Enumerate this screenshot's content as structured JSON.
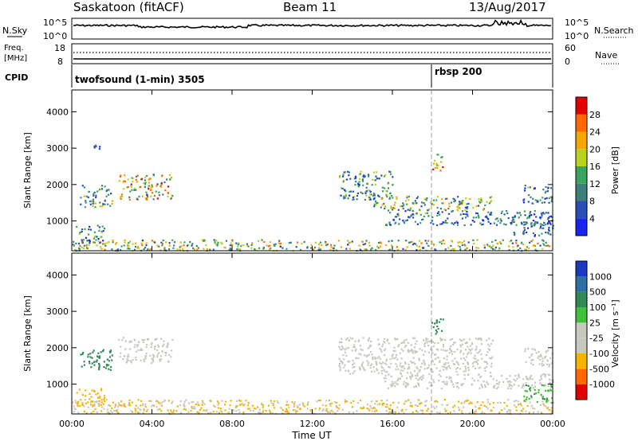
{
  "header": {
    "station": "Saskatoon (fitACF)",
    "beam": "Beam 11",
    "date": "13/Aug/2017"
  },
  "strips": {
    "nsky_label": "N.Sky",
    "nsky_ticks": [
      "10^5",
      "10^0"
    ],
    "nsearch_label": "N.Search",
    "nsearch_ticks": [
      "10^5",
      "10^0"
    ],
    "freq_label_1": "Freq.",
    "freq_label_2": "[MHz]",
    "freq_ticks": [
      "18",
      "8"
    ],
    "nave_label": "Nave",
    "nave_ticks": [
      "60",
      "0"
    ],
    "cpid_label": "CPID",
    "cpid_modes": [
      {
        "name": "twofsound (1-min) 3505",
        "start": 0
      },
      {
        "name": "rbsp 200",
        "start": 18.0
      }
    ]
  },
  "power_scale": {
    "title": "Power [dB]",
    "ticks": [
      "4",
      "8",
      "12",
      "16",
      "20",
      "24",
      "28"
    ],
    "colors": [
      "#1a23f0",
      "#274fb5",
      "#3d7f7a",
      "#3aa35c",
      "#b8d21f",
      "#f5a700",
      "#ff6a00",
      "#e30000"
    ]
  },
  "velocity_scale": {
    "title": "Velocity [m s⁻¹]",
    "ticks": [
      "-1000",
      "-500",
      "-100",
      "-25",
      "25",
      "100",
      "500",
      "1000"
    ],
    "colors": [
      "#e30000",
      "#ff6a00",
      "#f5b400",
      "#c8c8c0",
      "#c8c8c0",
      "#3fc23a",
      "#2f8a55",
      "#2c6fa3",
      "#1c37c2"
    ]
  },
  "axes": {
    "ylabel": "Slant Range [km]",
    "xlabel": "Time UT",
    "yticks": [
      "1000",
      "2000",
      "3000",
      "4000"
    ],
    "xticks": [
      "00:00",
      "04:00",
      "08:00",
      "12:00",
      "16:00",
      "20:00",
      "00:00"
    ]
  },
  "chart_data": [
    {
      "type": "heatmap",
      "panel": "power",
      "xunit": "hours UT",
      "yunit": "km",
      "xlim": [
        0,
        24
      ],
      "ylim": [
        180,
        4600
      ],
      "echo_regions": [
        {
          "t0": 0.0,
          "t1": 24.0,
          "r0": 200,
          "r1": 500,
          "value": 16
        },
        {
          "t0": 0.2,
          "t1": 1.6,
          "r0": 400,
          "r1": 900,
          "value": 10
        },
        {
          "t0": 0.4,
          "t1": 2.0,
          "r0": 1400,
          "r1": 2000,
          "value": 14
        },
        {
          "t0": 1.0,
          "t1": 1.5,
          "r0": 2950,
          "r1": 3100,
          "value": 6
        },
        {
          "t0": 2.3,
          "t1": 5.0,
          "r0": 1600,
          "r1": 2300,
          "value": 18
        },
        {
          "t0": 13.3,
          "t1": 16.0,
          "r0": 1600,
          "r1": 2400,
          "value": 10
        },
        {
          "t0": 15.0,
          "t1": 21.0,
          "r0": 1300,
          "r1": 1700,
          "value": 14
        },
        {
          "t0": 15.5,
          "t1": 24.0,
          "r0": 900,
          "r1": 1300,
          "value": 9
        },
        {
          "t0": 17.9,
          "t1": 18.5,
          "r0": 2400,
          "r1": 2850,
          "value": 22
        },
        {
          "t0": 22.0,
          "t1": 24.0,
          "r0": 600,
          "r1": 1000,
          "value": 8
        },
        {
          "t0": 22.5,
          "t1": 24.0,
          "r0": 1500,
          "r1": 2000,
          "value": 10
        }
      ]
    },
    {
      "type": "heatmap",
      "panel": "velocity",
      "xunit": "hours UT",
      "yunit": "km",
      "xlim": [
        0,
        24
      ],
      "ylim": [
        180,
        4600
      ],
      "echo_regions": [
        {
          "t0": 0.0,
          "t1": 24.0,
          "r0": 200,
          "r1": 600,
          "value": -100
        },
        {
          "t0": 0.2,
          "t1": 1.6,
          "r0": 400,
          "r1": 900,
          "value": -300
        },
        {
          "t0": 0.4,
          "t1": 2.0,
          "r0": 1400,
          "r1": 2000,
          "value": 200
        },
        {
          "t0": 2.3,
          "t1": 5.0,
          "r0": 1600,
          "r1": 2300,
          "value": 0
        },
        {
          "t0": 13.3,
          "t1": 21.0,
          "r0": 1300,
          "r1": 2300,
          "value": 0
        },
        {
          "t0": 15.5,
          "t1": 24.0,
          "r0": 900,
          "r1": 1300,
          "value": 0
        },
        {
          "t0": 17.9,
          "t1": 18.5,
          "r0": 2400,
          "r1": 2850,
          "value": 300
        },
        {
          "t0": 22.5,
          "t1": 24.0,
          "r0": 500,
          "r1": 1000,
          "value": 80
        },
        {
          "t0": 22.5,
          "t1": 24.0,
          "r0": 1500,
          "r1": 2000,
          "value": 0
        }
      ]
    }
  ]
}
